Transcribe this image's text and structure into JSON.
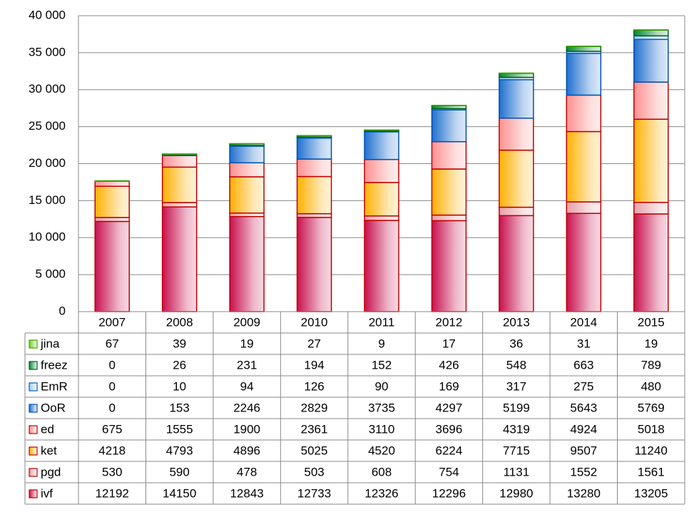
{
  "chart_data": {
    "type": "stacked-bar-table",
    "categories": [
      "2007",
      "2008",
      "2009",
      "2010",
      "2011",
      "2012",
      "2013",
      "2014",
      "2015"
    ],
    "ylim": [
      0,
      40000
    ],
    "yticks": [
      0,
      {
        "value": 5000,
        "label": "5 000"
      },
      {
        "value": 10000,
        "label": "10 000"
      },
      {
        "value": 15000,
        "label": "15 000"
      },
      {
        "value": 20000,
        "label": "20 000"
      },
      {
        "value": 25000,
        "label": "25 000"
      },
      {
        "value": 30000,
        "label": "30 000"
      },
      {
        "value": 35000,
        "label": "35 000"
      },
      {
        "value": 40000,
        "label": "40 000"
      }
    ],
    "grid": true,
    "series": [
      {
        "name": "ivf",
        "color": "#c8104e",
        "border": "#c00000",
        "values": [
          12192,
          14150,
          12843,
          12733,
          12326,
          12296,
          12980,
          13280,
          13205
        ]
      },
      {
        "name": "pgd",
        "color": "#e8a0a8",
        "border": "#c00000",
        "values": [
          530,
          590,
          478,
          503,
          608,
          754,
          1131,
          1552,
          1561
        ]
      },
      {
        "name": "ket",
        "color": "#ffb000",
        "border": "#c00000",
        "values": [
          4218,
          4793,
          4896,
          5025,
          4520,
          6224,
          7715,
          9507,
          11240
        ]
      },
      {
        "name": "ed",
        "color": "#ff9090",
        "border": "#c00000",
        "values": [
          675,
          1555,
          1900,
          2361,
          3110,
          3696,
          4319,
          4924,
          5018
        ]
      },
      {
        "name": "OoR",
        "color": "#2070d0",
        "border": "#0050b0",
        "values": [
          0,
          153,
          2246,
          2829,
          3735,
          4297,
          5199,
          5643,
          5769
        ]
      },
      {
        "name": "EmR",
        "color": "#a0c8f0",
        "border": "#0060c0",
        "values": [
          0,
          10,
          94,
          126,
          90,
          169,
          317,
          275,
          480
        ]
      },
      {
        "name": "freez",
        "color": "#008830",
        "border": "#006020",
        "values": [
          0,
          26,
          231,
          194,
          152,
          426,
          548,
          663,
          789
        ]
      },
      {
        "name": "jina",
        "color": "#70d020",
        "border": "#40a000",
        "values": [
          67,
          39,
          19,
          27,
          9,
          17,
          36,
          31,
          19
        ]
      }
    ]
  }
}
